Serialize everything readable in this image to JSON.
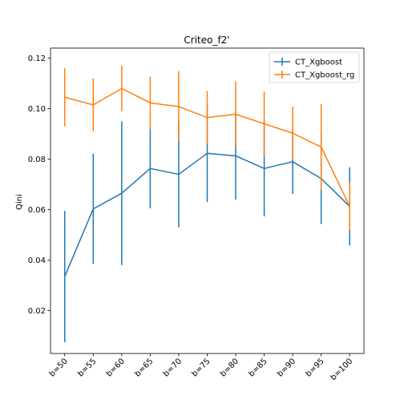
{
  "chart_data": {
    "type": "line",
    "title": "Criteo_f2'",
    "xlabel": "",
    "ylabel": "Qini",
    "categories": [
      "b=50",
      "b=55",
      "b=60",
      "b=65",
      "b=70",
      "b=75",
      "b=80",
      "b=85",
      "b=90",
      "b=95",
      "b=100"
    ],
    "ylim": [
      0.003,
      0.124
    ],
    "yticks": [
      0.02,
      0.04,
      0.06,
      0.08,
      0.1,
      0.12
    ],
    "ytick_labels": [
      "0.02",
      "0.04",
      "0.06",
      "0.08",
      "0.10",
      "0.12"
    ],
    "legend_position": "upper right",
    "grid": false,
    "series": [
      {
        "name": "CT_Xgboost",
        "color": "#1f77b4",
        "values": [
          0.0335,
          0.0603,
          0.0665,
          0.0763,
          0.074,
          0.0823,
          0.0813,
          0.0763,
          0.079,
          0.0723,
          0.0613
        ],
        "errors": [
          0.026,
          0.0218,
          0.0285,
          0.0158,
          0.021,
          0.0193,
          0.0173,
          0.019,
          0.0128,
          0.018,
          0.0155
        ]
      },
      {
        "name": "CT_Xgboost_rg",
        "color": "#ff7f0e",
        "values": [
          0.1045,
          0.1015,
          0.108,
          0.1023,
          0.1008,
          0.0965,
          0.0978,
          0.094,
          0.0903,
          0.0848,
          0.0613
        ],
        "errors": [
          0.0115,
          0.0105,
          0.009,
          0.0103,
          0.014,
          0.0105,
          0.013,
          0.0128,
          0.0105,
          0.017,
          0.0095
        ]
      }
    ]
  }
}
